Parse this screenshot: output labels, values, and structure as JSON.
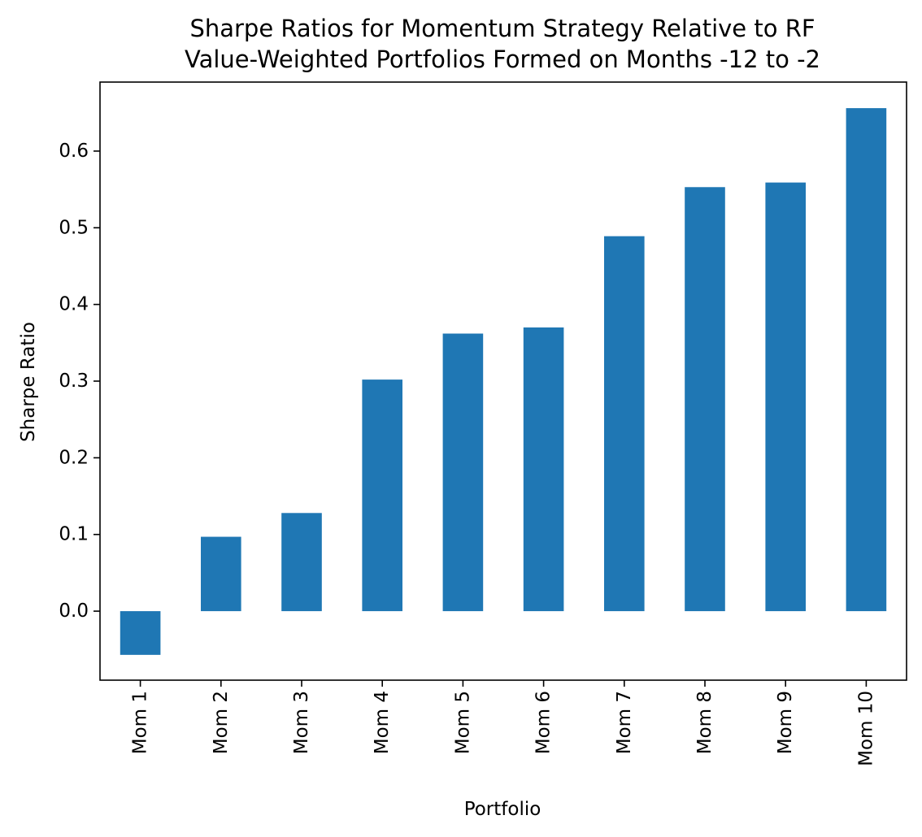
{
  "chart_data": {
    "type": "bar",
    "title": "Sharpe Ratios for Momentum Strategy Relative to RF",
    "subtitle": "Value-Weighted Portfolios Formed on Months -12 to -2",
    "xlabel": "Portfolio",
    "ylabel": "Sharpe Ratio",
    "categories": [
      "Mom 1",
      "Mom 2",
      "Mom 3",
      "Mom 4",
      "Mom 5",
      "Mom 6",
      "Mom 7",
      "Mom 8",
      "Mom 9",
      "Mom 10"
    ],
    "values": [
      -0.057,
      0.097,
      0.128,
      0.302,
      0.362,
      0.37,
      0.489,
      0.553,
      0.559,
      0.656
    ],
    "ylim": [
      -0.09,
      0.69
    ],
    "yticks": [
      "0.0",
      "0.1",
      "0.2",
      "0.3",
      "0.4",
      "0.5",
      "0.6"
    ],
    "grid": false,
    "legend": "none",
    "bar_color": "#1f77b4"
  }
}
